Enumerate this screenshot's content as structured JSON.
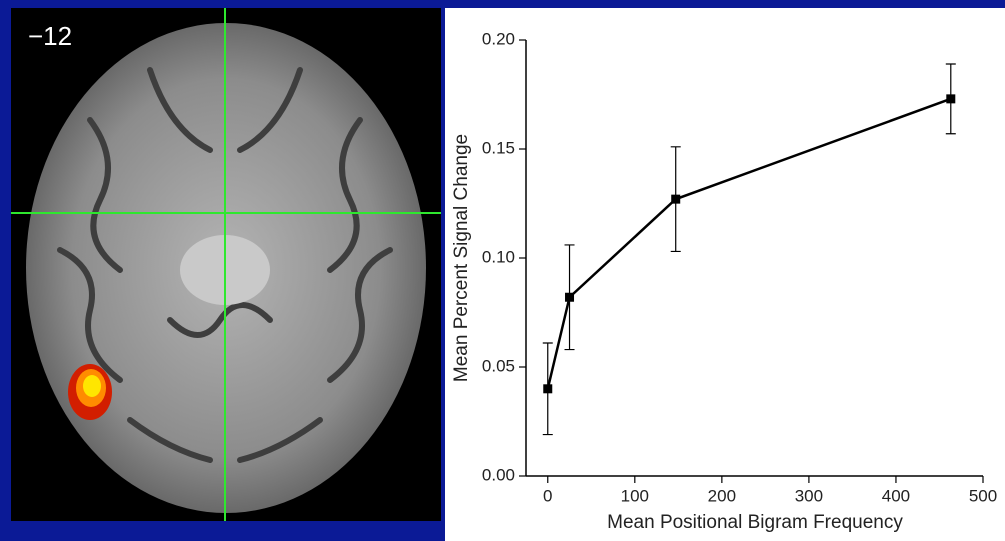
{
  "image_label": "−12",
  "chart_data": {
    "type": "line",
    "x_label": "Mean Positional Bigram Frequency",
    "y_label": "Mean Percent Signal Change",
    "x": [
      0,
      25,
      147,
      463
    ],
    "series": [
      {
        "color": "#000000",
        "values": [
          0.04,
          0.082,
          0.127,
          0.173
        ],
        "errors": [
          0.021,
          0.024,
          0.024,
          0.016
        ]
      }
    ],
    "xlim": [
      -25,
      500
    ],
    "ylim": [
      0,
      0.2
    ],
    "xticks": [
      0,
      100,
      200,
      300,
      400,
      500
    ],
    "yticks": [
      {
        "value": 0,
        "label": "0.00"
      },
      {
        "value": 0.05,
        "label": "0.05"
      },
      {
        "value": 0.1,
        "label": "0.10"
      },
      {
        "value": 0.15,
        "label": "0.15"
      },
      {
        "value": 0.2,
        "label": "0.20"
      }
    ]
  }
}
